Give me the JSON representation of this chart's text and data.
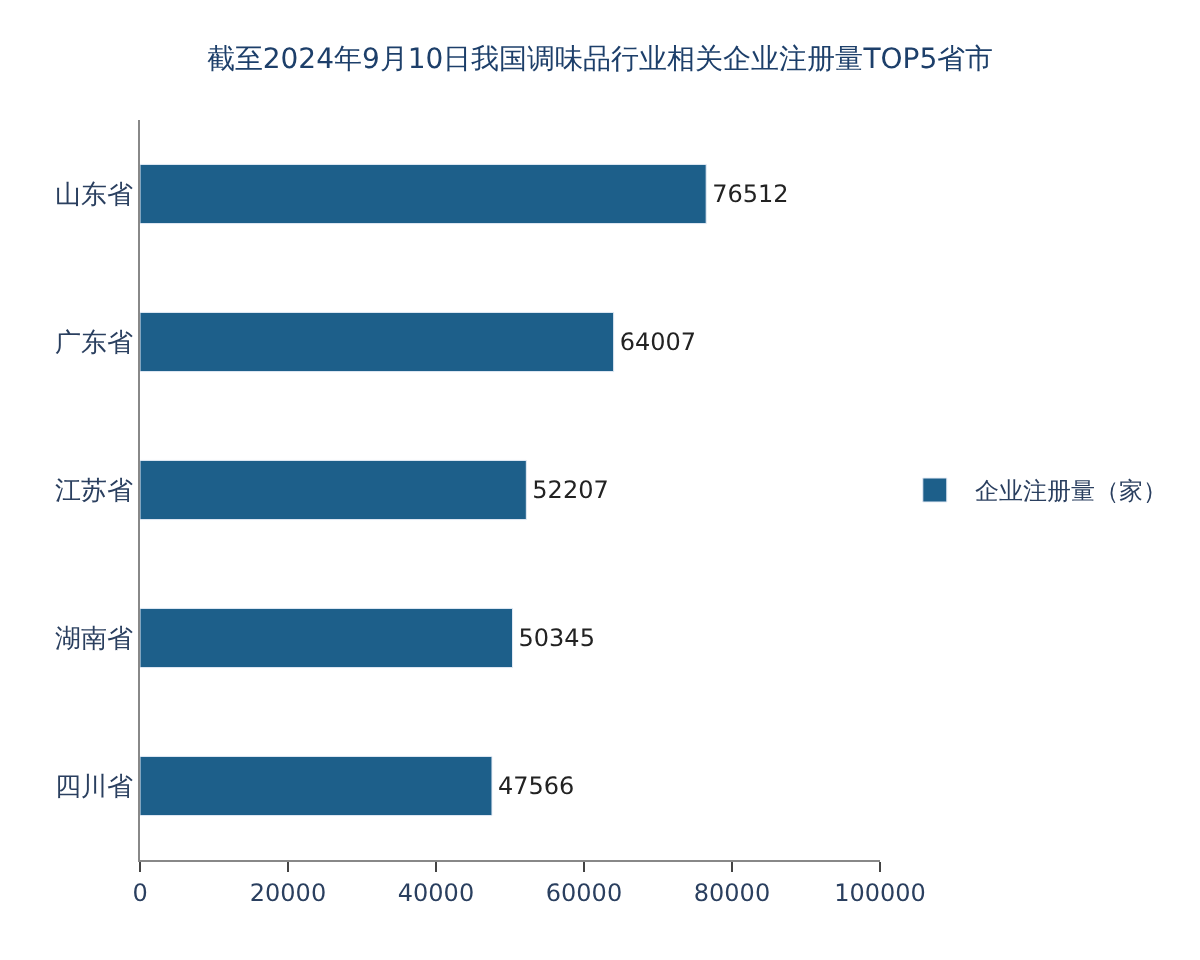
{
  "chart_data": {
    "type": "bar",
    "orientation": "horizontal",
    "title": "截至2024年9月10日我国调味品行业相关企业注册量TOP5省市",
    "categories": [
      "山东省",
      "广东省",
      "江苏省",
      "湖南省",
      "四川省"
    ],
    "series": [
      {
        "name": "企业注册量（家）",
        "color": "#1d5f8a",
        "values": [
          76512,
          64007,
          52207,
          50345,
          47566
        ]
      }
    ],
    "xlim": [
      0,
      100000
    ],
    "xticks": [
      0,
      20000,
      40000,
      60000,
      80000,
      100000
    ],
    "data_labels": true,
    "legend": "right"
  }
}
